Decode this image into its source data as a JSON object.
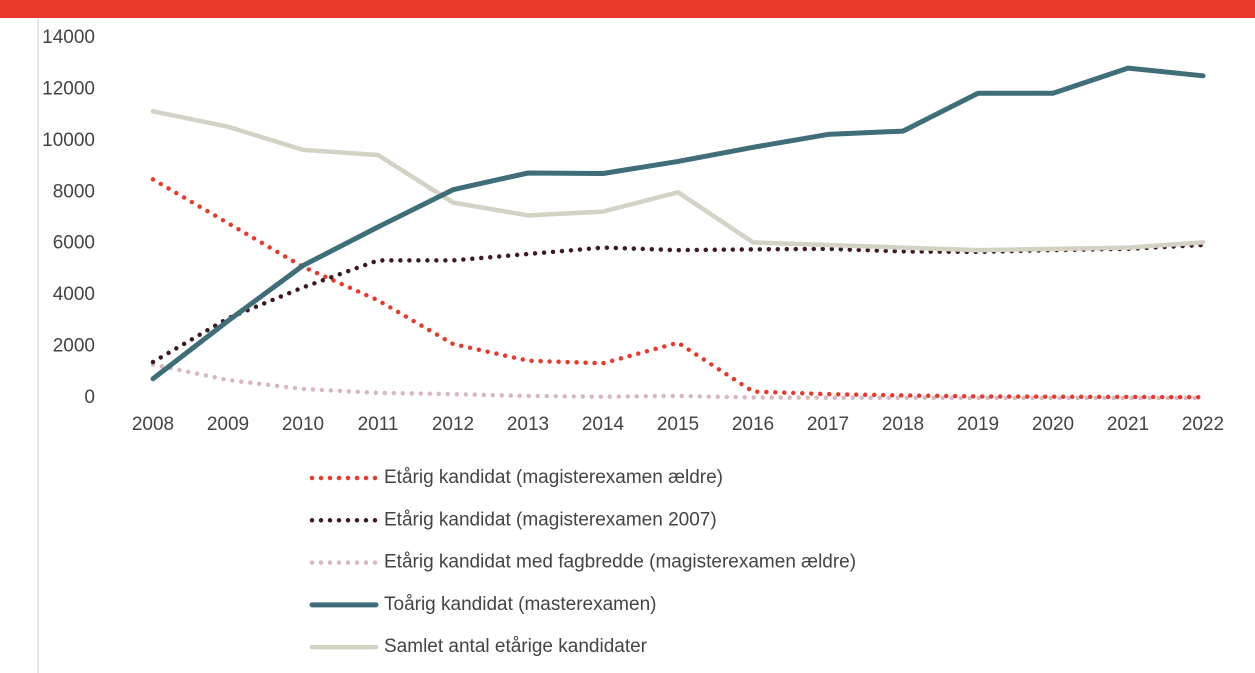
{
  "chart_data": {
    "type": "line",
    "categories": [
      "2008",
      "2009",
      "2010",
      "2011",
      "2012",
      "2013",
      "2014",
      "2015",
      "2016",
      "2017",
      "2018",
      "2019",
      "2020",
      "2021",
      "2022"
    ],
    "series": [
      {
        "name": "Etårig kandidat (magisterexamen ældre)",
        "color": "#e8392b",
        "style": "dotted",
        "values": [
          8500,
          6800,
          5100,
          3800,
          2100,
          1450,
          1350,
          2150,
          250,
          150,
          100,
          60,
          50,
          40,
          30
        ]
      },
      {
        "name": "Etårig kandidat (magisterexamen 2007)",
        "color": "#3d1a22",
        "style": "dotted",
        "values": [
          1400,
          3100,
          4300,
          5350,
          5350,
          5600,
          5850,
          5750,
          5780,
          5800,
          5700,
          5680,
          5750,
          5800,
          5950
        ]
      },
      {
        "name": "Etårig kandidat med fagbredde (magisterexamen ældre)",
        "color": "#d8b8bf",
        "style": "dotted",
        "values": [
          1300,
          700,
          350,
          200,
          150,
          80,
          50,
          80,
          20,
          10,
          10,
          0,
          0,
          0,
          0
        ]
      },
      {
        "name": "Toårig kandidat (masterexamen)",
        "color": "#3f6e78",
        "style": "solid",
        "values": [
          750,
          3000,
          5150,
          6650,
          8100,
          8750,
          8730,
          9200,
          9750,
          10250,
          10380,
          11850,
          11850,
          12830,
          12530
        ]
      },
      {
        "name": "Samlet antal etårige kandidater",
        "color": "#d4d2c4",
        "style": "solid",
        "values": [
          11150,
          10550,
          9650,
          9450,
          7600,
          7100,
          7250,
          8000,
          6050,
          5950,
          5850,
          5750,
          5800,
          5850,
          6050
        ]
      }
    ],
    "ylim": [
      0,
      14000
    ],
    "yticks": [
      0,
      2000,
      4000,
      6000,
      8000,
      10000,
      12000,
      14000
    ],
    "grid": false,
    "legend": "bottom"
  }
}
